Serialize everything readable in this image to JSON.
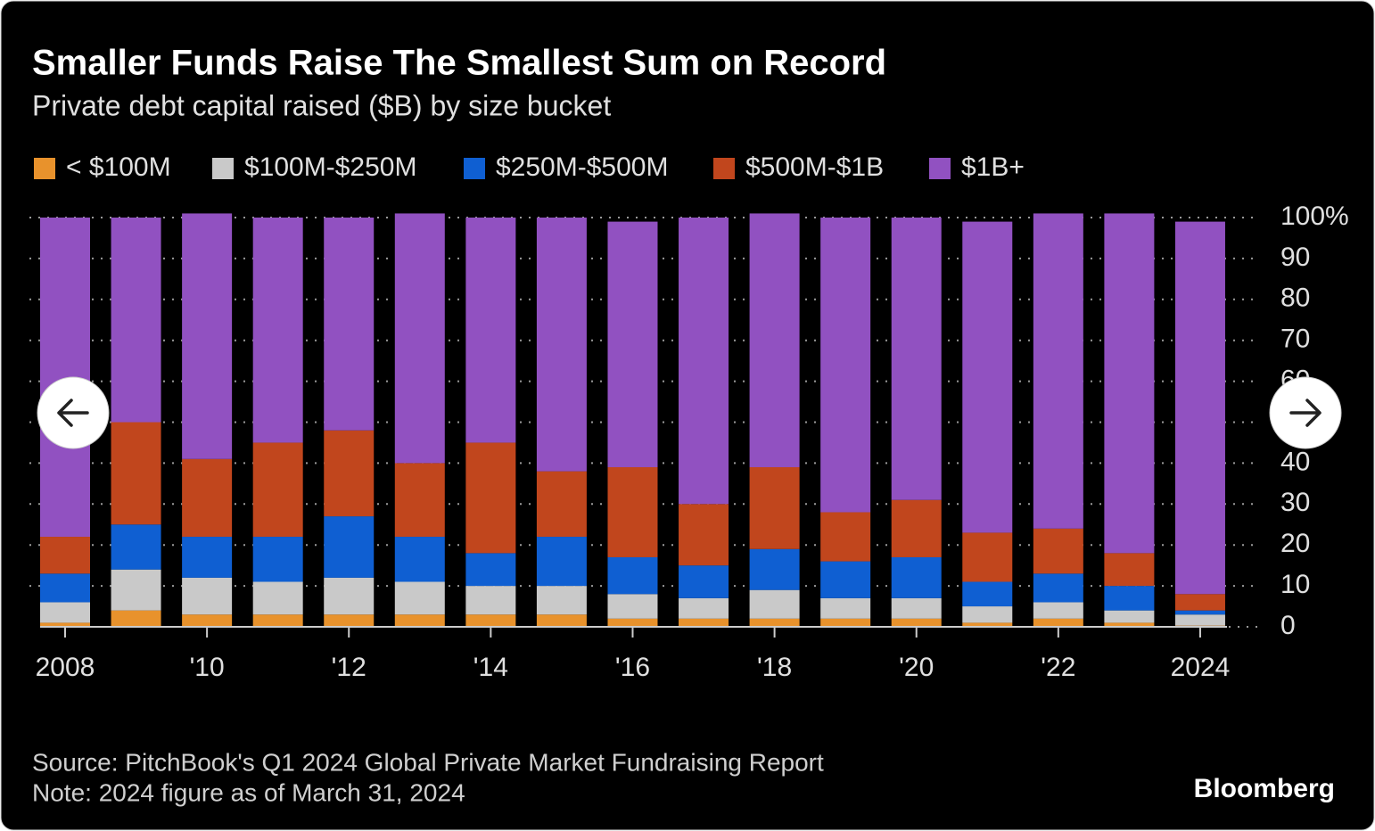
{
  "chart_data": {
    "type": "stacked_bar",
    "title": "Smaller Funds Raise The Smallest Sum on Record",
    "subtitle": "Private debt capital raised ($B) by size bucket",
    "categories": [
      "2008",
      null,
      "'10",
      null,
      "'12",
      null,
      "'14",
      null,
      "'16",
      null,
      "'18",
      null,
      "'20",
      null,
      "'22",
      null,
      "2024"
    ],
    "series": [
      {
        "name": "< $100M",
        "color": "#e8922c",
        "values": [
          1,
          4,
          3,
          3,
          3,
          3,
          3,
          3,
          2,
          2,
          2,
          2,
          2,
          1,
          2,
          1,
          0.3
        ]
      },
      {
        "name": "$100M-$250M",
        "color": "#c9c9c9",
        "values": [
          5,
          10,
          9,
          8,
          9,
          8,
          7,
          7,
          6,
          5,
          7,
          5,
          5,
          4,
          4,
          3,
          2.7
        ]
      },
      {
        "name": "$250M-$500M",
        "color": "#0f5fd2",
        "values": [
          7,
          11,
          10,
          11,
          15,
          11,
          8,
          12,
          9,
          8,
          10,
          9,
          10,
          6,
          7,
          6,
          1
        ]
      },
      {
        "name": "$500M-$1B",
        "color": "#c1461d",
        "values": [
          9,
          25,
          19,
          23,
          21,
          18,
          27,
          16,
          22,
          15,
          20,
          12,
          14,
          12,
          11,
          8,
          4
        ]
      },
      {
        "name": "$1B+",
        "color": "#9151c1",
        "values": [
          78,
          50,
          60,
          55,
          52,
          61,
          55,
          62,
          60,
          70,
          62,
          72,
          69,
          76,
          77,
          83,
          91
        ]
      }
    ],
    "ylim": [
      0,
      100
    ],
    "yticks": [
      0,
      10,
      20,
      30,
      40,
      50,
      60,
      70,
      80,
      90,
      {
        "value": 100,
        "label": "100%"
      }
    ],
    "grid": true,
    "source": "Source: PitchBook's Q1 2024 Global Private Market Fundraising Report",
    "note": "Note: 2024 figure as of March 31, 2024"
  },
  "brand": "Bloomberg"
}
